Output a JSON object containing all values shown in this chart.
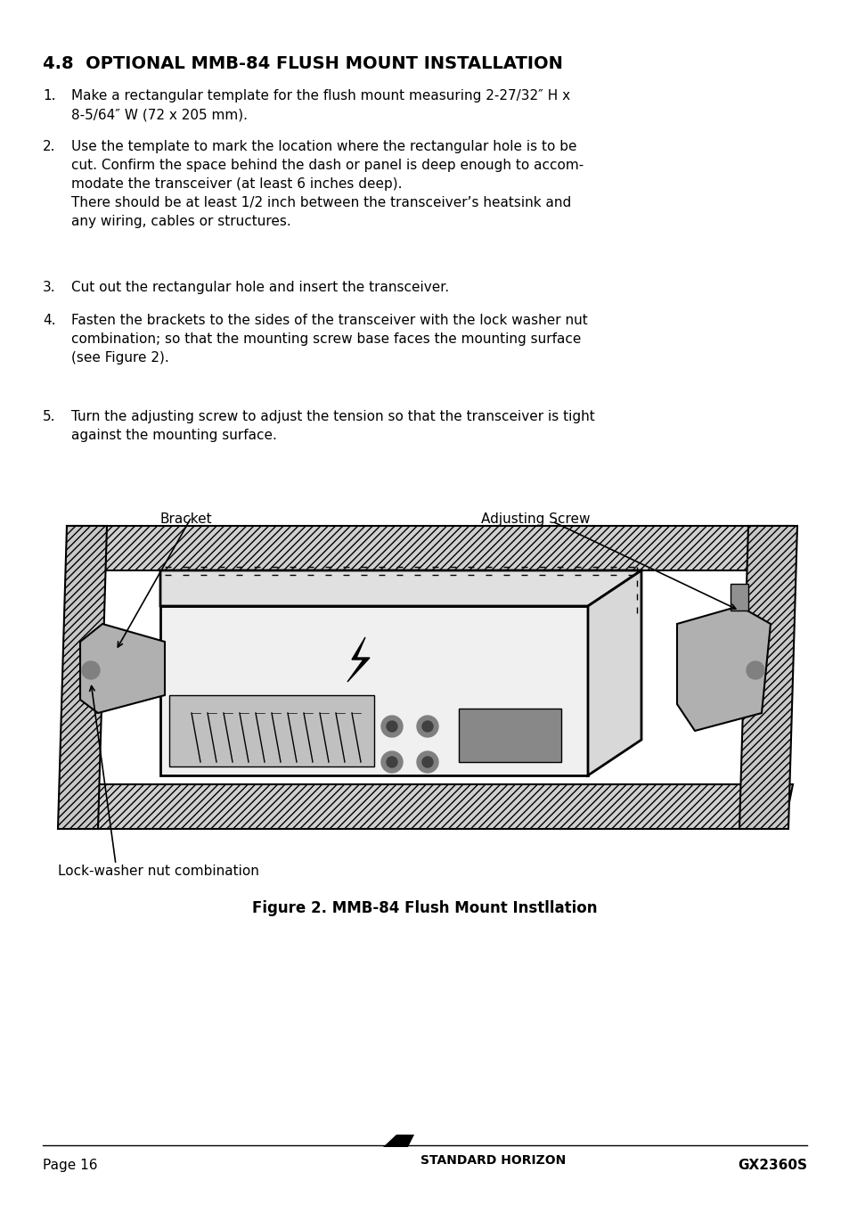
{
  "title": "4.8  OPTIONAL MMB-84 FLUSH MOUNT INSTALLATION",
  "title_fontsize": 14,
  "body_fontsize": 11,
  "bg_color": "#ffffff",
  "text_color": "#000000",
  "page_label": "Page 16",
  "model_label": "GX2360S",
  "brand_label": "STANDARD HORIZON",
  "items": [
    {
      "num": "1.",
      "text": "Make a rectangular template for the flush mount measuring 2-27/32″ H x\n8-5/64″ W (72 x 205 mm)."
    },
    {
      "num": "2.",
      "text": "Use the template to mark the location where the rectangular hole is to be\ncut. Confirm the space behind the dash or panel is deep enough to accom-\nmodate the transceiver (at least 6 inches deep).\nThere should be at least 1/2 inch between the transceiver’s heatsink and\nany wiring, cables or structures."
    },
    {
      "num": "3.",
      "text": "Cut out the rectangular hole and insert the transceiver."
    },
    {
      "num": "4.",
      "text": "Fasten the brackets to the sides of the transceiver with the lock washer nut\ncombination; so that the mounting screw base faces the mounting surface\n(see Figure 2)."
    },
    {
      "num": "5.",
      "text": "Turn the adjusting screw to adjust the tension so that the transceiver is tight\nagainst the mounting surface."
    }
  ],
  "figure_caption": "Figure 2. MMB-84 Flush Mount Instllation",
  "bracket_label": "Bracket",
  "adjusting_screw_label": "Adjusting Screw",
  "lock_washer_label": "Lock-washer nut combination"
}
